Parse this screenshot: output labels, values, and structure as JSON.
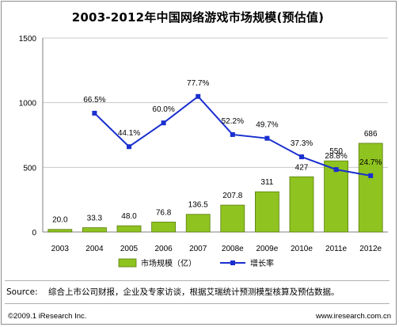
{
  "title": "2003-2012年中国网络游戏市场规模(预估值)",
  "source_label": "Source:",
  "source_text": "综合上市公司财报，企业及专家访谈，根据艾瑞统计预测模型核算及预估数据。",
  "copyright": "©2009.1 iResearch Inc.",
  "website": "www.iresearch.com.cn",
  "chart_data": {
    "type": "bar",
    "categories": [
      "2003",
      "2004",
      "2005",
      "2006",
      "2007",
      "2008e",
      "2009e",
      "2010e",
      "2011e",
      "2012e"
    ],
    "ylim": [
      0,
      1500
    ],
    "yticks": [
      0,
      500,
      1000,
      1500
    ],
    "series": [
      {
        "name": "市场规模（亿）",
        "type": "bar",
        "color": "#8fc31f",
        "values": [
          20.0,
          33.3,
          48.0,
          76.8,
          136.5,
          207.8,
          311,
          427,
          550,
          686
        ],
        "labels": [
          "20.0",
          "33.3",
          "48.0",
          "76.8",
          "136.5",
          "207.8",
          "311",
          "427",
          "550",
          "686"
        ]
      },
      {
        "name": "增长率",
        "type": "line",
        "color": "#1a2fcf",
        "marker": "square",
        "values": [
          null,
          66.5,
          44.1,
          60.0,
          77.7,
          52.2,
          49.7,
          37.3,
          28.8,
          24.7
        ],
        "labels": [
          null,
          "66.5%",
          "44.1%",
          "60.0%",
          "77.7%",
          "52.2%",
          "49.7%",
          "37.3%",
          "28.8%",
          "24.7%"
        ],
        "note": "growth rate in percent, drawn on secondary scale (not printed)"
      }
    ],
    "legend_position": "bottom",
    "grid": "horizontal"
  }
}
